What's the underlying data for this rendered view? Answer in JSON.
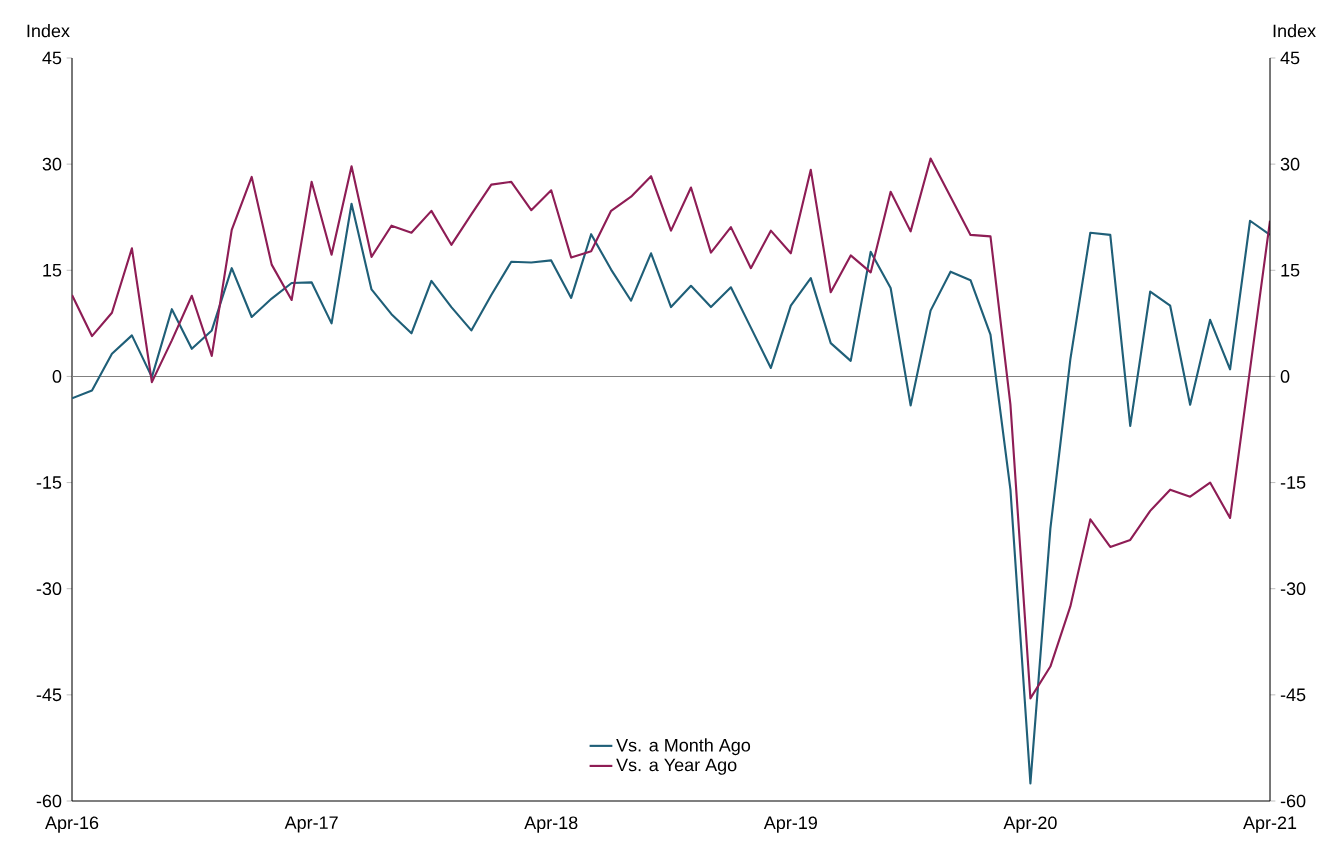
{
  "chart_data": {
    "type": "line",
    "ylabel": "Index",
    "y2label": "Index",
    "x": [
      "2016-04",
      "2016-05",
      "2016-06",
      "2016-07",
      "2016-08",
      "2016-09",
      "2016-10",
      "2016-11",
      "2016-12",
      "2017-01",
      "2017-02",
      "2017-03",
      "2017-04",
      "2017-05",
      "2017-06",
      "2017-07",
      "2017-08",
      "2017-09",
      "2017-10",
      "2017-11",
      "2017-12",
      "2018-01",
      "2018-02",
      "2018-03",
      "2018-04",
      "2018-05",
      "2018-06",
      "2018-07",
      "2018-08",
      "2018-09",
      "2018-10",
      "2018-11",
      "2018-12",
      "2019-01",
      "2019-02",
      "2019-03",
      "2019-04",
      "2019-05",
      "2019-06",
      "2019-07",
      "2019-08",
      "2019-09",
      "2019-10",
      "2019-11",
      "2019-12",
      "2020-01",
      "2020-02",
      "2020-03",
      "2020-04",
      "2020-05",
      "2020-06",
      "2020-07",
      "2020-08",
      "2020-09",
      "2020-10",
      "2020-11",
      "2020-12",
      "2021-01",
      "2021-02",
      "2021-03",
      "2021-04"
    ],
    "series": [
      {
        "name": "Vs. a Month Ago",
        "color": "#1f5f78",
        "values": [
          -3.1,
          -2,
          3.2,
          5.8,
          -0.1,
          9.5,
          3.9,
          6.5,
          15.3,
          8.4,
          11,
          13.2,
          13.3,
          7.5,
          24.4,
          12.3,
          8.8,
          6.1,
          13.5,
          9.8,
          6.5,
          11.5,
          16.2,
          16.1,
          16.4,
          11.1,
          20.1,
          15.1,
          10.7,
          17.4,
          9.8,
          12.8,
          9.8,
          12.6,
          6.9,
          1.2,
          10,
          13.9,
          4.7,
          2.2,
          17.6,
          12.5,
          -4.1,
          9.3,
          14.8,
          13.6,
          5.9,
          -16,
          -57.5,
          -21.5,
          2.4,
          20.3,
          20,
          -7,
          12,
          10,
          -4,
          8,
          1,
          22,
          20
        ]
      },
      {
        "name": "Vs. a Year Ago",
        "color": "#8e1d55",
        "values": [
          11.5,
          5.7,
          9,
          18.1,
          -0.8,
          5.1,
          11.4,
          2.9,
          20.7,
          28.2,
          15.8,
          10.8,
          27.5,
          17.2,
          29.7,
          16.9,
          21.3,
          20.3,
          23.4,
          18.6,
          22.9,
          27.1,
          27.5,
          23.5,
          26.3,
          16.8,
          17.7,
          23.4,
          25.4,
          28.3,
          20.6,
          26.7,
          17.5,
          21.1,
          15.3,
          20.6,
          17.4,
          29.2,
          11.9,
          17.1,
          14.7,
          26.1,
          20.5,
          30.8,
          25.4,
          20,
          19.8,
          -4,
          -45.5,
          -41,
          -32.5,
          -20.2,
          -24.1,
          -23.1,
          -19,
          -16,
          -17,
          -15,
          -20,
          1,
          22
        ]
      }
    ],
    "xlim": [
      "2016-04",
      "2021-04"
    ],
    "xticks": [
      {
        "value": "2016-04",
        "label": "Apr-16"
      },
      {
        "value": "2017-04",
        "label": "Apr-17"
      },
      {
        "value": "2018-04",
        "label": "Apr-18"
      },
      {
        "value": "2019-04",
        "label": "Apr-19"
      },
      {
        "value": "2020-04",
        "label": "Apr-20"
      },
      {
        "value": "2021-04",
        "label": "Apr-21"
      }
    ],
    "ylim": [
      -60,
      45
    ],
    "yticks": [
      -60,
      -45,
      -30,
      -15,
      0,
      15,
      30,
      45
    ],
    "y2lim": [
      -60,
      45
    ],
    "y2ticks": [
      -60,
      -45,
      -30,
      -15,
      0,
      15,
      30,
      45
    ],
    "ref_lines": [
      {
        "axis": "y",
        "value": 0,
        "color": "#808080"
      }
    ],
    "legend": "bottom",
    "grid": false,
    "marker": "none",
    "line_style": "solid"
  }
}
